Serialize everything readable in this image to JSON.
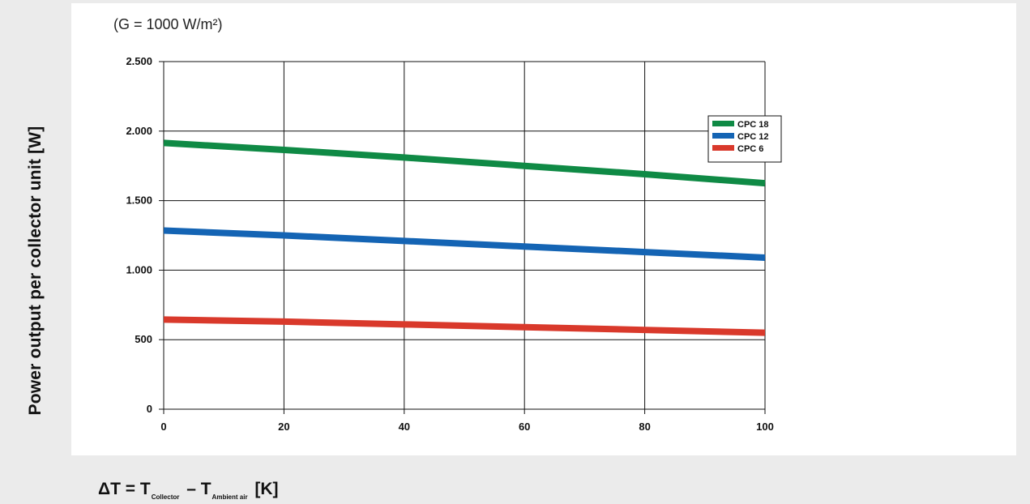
{
  "chart_data": {
    "type": "line",
    "subtitle": "(G = 1000 W/m²)",
    "xlabel": {
      "prefix": "ΔT = T",
      "sub1": "Collector",
      "mid": " – T",
      "sub2": "Ambient air",
      "suffix": " [K]"
    },
    "ylabel": "Power output per collector unit [W]",
    "xlim": [
      0,
      100
    ],
    "ylim": [
      0,
      2500
    ],
    "x_ticks": [
      0,
      20,
      40,
      60,
      80,
      100
    ],
    "x_tick_labels": [
      "0",
      "20",
      "40",
      "60",
      "80",
      "100"
    ],
    "y_ticks": [
      0,
      500,
      1000,
      1500,
      2000,
      2500
    ],
    "y_tick_labels": [
      "0",
      "500",
      "1.000",
      "1.500",
      "2.000",
      "2.500"
    ],
    "grid": true,
    "legend_position": "right",
    "x": [
      0,
      20,
      40,
      60,
      80,
      100
    ],
    "series": [
      {
        "name": "CPC 18",
        "color": "#0f8a45",
        "values": [
          1915,
          1865,
          1810,
          1750,
          1690,
          1625
        ]
      },
      {
        "name": "CPC 12",
        "color": "#1464b4",
        "values": [
          1285,
          1250,
          1210,
          1170,
          1130,
          1090
        ]
      },
      {
        "name": "CPC 6",
        "color": "#d9392b",
        "values": [
          645,
          630,
          610,
          590,
          570,
          550
        ]
      }
    ]
  }
}
